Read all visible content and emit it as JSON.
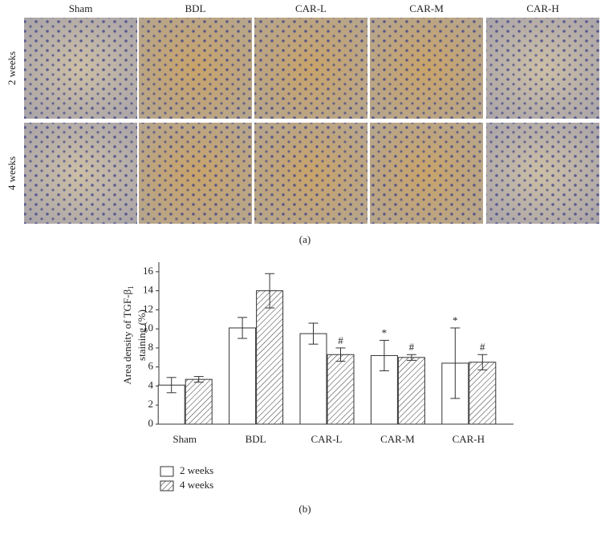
{
  "panel_a": {
    "columns": [
      "Sham",
      "BDL",
      "CAR-L",
      "CAR-M",
      "CAR-H"
    ],
    "rows": [
      "2 weeks",
      "4 weeks"
    ],
    "caption": "(a)"
  },
  "chart_data": {
    "type": "bar",
    "y_label": {
      "line1": "Area density of TGF-β",
      "subscript": "1",
      "line2": "staining (%)"
    },
    "categories": [
      "Sham",
      "BDL",
      "CAR-L",
      "CAR-M",
      "CAR-H"
    ],
    "series": [
      {
        "name": "2 weeks",
        "color": "#ffffff",
        "hatch": false,
        "values": [
          4.1,
          10.1,
          9.5,
          7.2,
          6.4
        ],
        "errors": [
          0.8,
          1.1,
          1.1,
          1.6,
          3.7
        ],
        "markers": [
          null,
          null,
          null,
          "*",
          "*"
        ]
      },
      {
        "name": "4 weeks",
        "color": "#ffffff",
        "hatch": true,
        "values": [
          4.7,
          14.0,
          7.3,
          7.0,
          6.5
        ],
        "errors": [
          0.3,
          1.8,
          0.7,
          0.3,
          0.8
        ],
        "markers": [
          null,
          null,
          "#",
          "#",
          "#"
        ]
      }
    ],
    "ylim": [
      0,
      17
    ],
    "yticks": [
      0,
      2,
      4,
      6,
      8,
      10,
      12,
      14,
      16
    ],
    "caption": "(b)"
  }
}
